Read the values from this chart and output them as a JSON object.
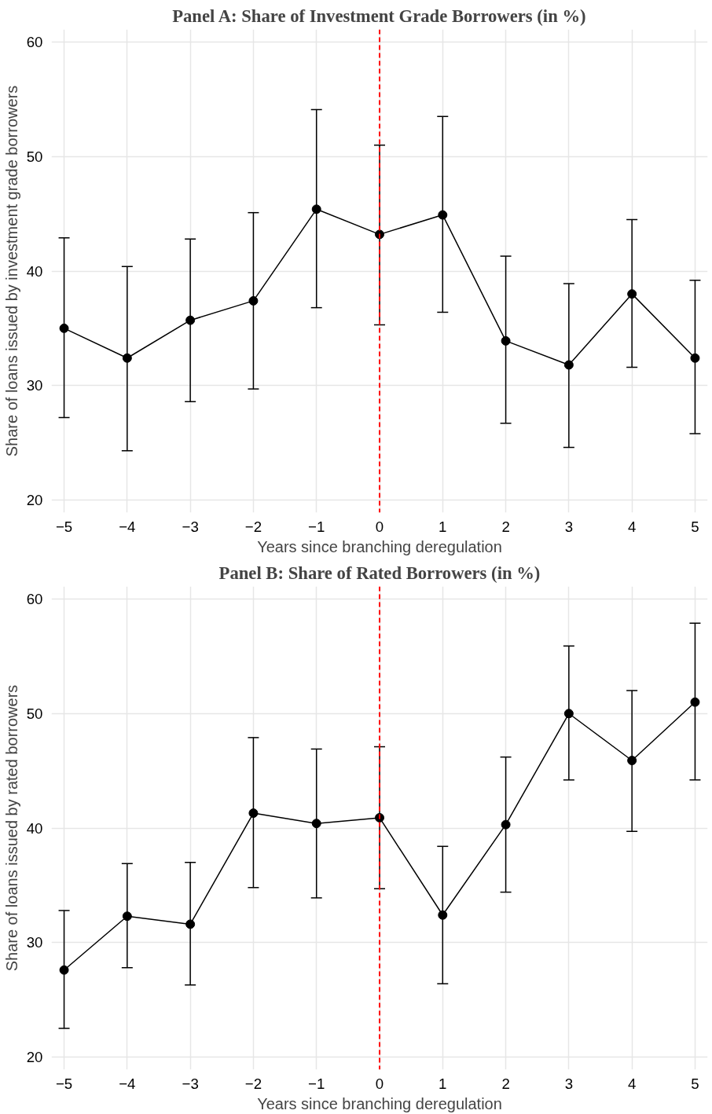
{
  "chart_data": [
    {
      "type": "line",
      "title": "Panel A: Share of Investment Grade Borrowers (in %)",
      "xlabel": "Years since branching deregulation",
      "ylabel": "Share of loans issued by investment grade borrowers",
      "x": [
        -5,
        -4,
        -3,
        -2,
        -1,
        0,
        1,
        2,
        3,
        4,
        5
      ],
      "series": [
        {
          "color": "#000000",
          "values": [
            35.0,
            32.4,
            35.7,
            37.4,
            45.4,
            43.2,
            44.9,
            33.9,
            31.8,
            38.0,
            32.4
          ],
          "errors": [
            [
              27.2,
              42.9
            ],
            [
              24.3,
              40.4
            ],
            [
              28.6,
              42.8
            ],
            [
              29.7,
              45.1
            ],
            [
              36.8,
              54.1
            ],
            [
              35.3,
              51.0
            ],
            [
              36.4,
              53.5
            ],
            [
              26.7,
              41.3
            ],
            [
              24.6,
              38.9
            ],
            [
              31.6,
              44.5
            ],
            [
              25.8,
              39.2
            ]
          ]
        }
      ],
      "xlim": [
        -5.2,
        5.2
      ],
      "ylim": [
        18.9,
        61.1
      ],
      "xticks": [
        {
          "value": -5,
          "label": "−5"
        },
        {
          "value": -4,
          "label": "−4"
        },
        {
          "value": -3,
          "label": "−3"
        },
        {
          "value": -2,
          "label": "−2"
        },
        {
          "value": -1,
          "label": "−1"
        },
        0,
        1,
        2,
        3,
        4,
        5
      ],
      "yticks": [
        20,
        30,
        40,
        50,
        60
      ],
      "ref_lines": [
        {
          "axis": "x",
          "value": 0,
          "color": "#ff0000",
          "line_style": "dashed"
        }
      ],
      "grid": true,
      "marker": "circle",
      "line_style": "solid"
    },
    {
      "type": "line",
      "title": "Panel B: Share of Rated Borrowers (in %)",
      "xlabel": "Years since branching deregulation",
      "ylabel": "Share of loans issued by rated borrowers",
      "x": [
        -5,
        -4,
        -3,
        -2,
        -1,
        0,
        1,
        2,
        3,
        4,
        5
      ],
      "series": [
        {
          "color": "#000000",
          "values": [
            27.6,
            32.3,
            31.6,
            41.3,
            40.4,
            40.9,
            32.4,
            40.3,
            50.0,
            45.9,
            51.0
          ],
          "errors": [
            [
              22.5,
              32.8
            ],
            [
              27.8,
              36.9
            ],
            [
              26.3,
              37.0
            ],
            [
              34.8,
              47.9
            ],
            [
              33.9,
              46.9
            ],
            [
              34.7,
              47.1
            ],
            [
              26.4,
              38.4
            ],
            [
              34.4,
              46.2
            ],
            [
              44.2,
              55.9
            ],
            [
              39.7,
              52.0
            ],
            [
              44.2,
              57.9
            ]
          ]
        }
      ],
      "xlim": [
        -5.2,
        5.2
      ],
      "ylim": [
        18.9,
        61.1
      ],
      "xticks": [
        {
          "value": -5,
          "label": "−5"
        },
        {
          "value": -4,
          "label": "−4"
        },
        {
          "value": -3,
          "label": "−3"
        },
        {
          "value": -2,
          "label": "−2"
        },
        {
          "value": -1,
          "label": "−1"
        },
        0,
        1,
        2,
        3,
        4,
        5
      ],
      "yticks": [
        20,
        30,
        40,
        50,
        60
      ],
      "ref_lines": [
        {
          "axis": "x",
          "value": 0,
          "color": "#ff0000",
          "line_style": "dashed"
        }
      ],
      "grid": true,
      "marker": "circle",
      "line_style": "solid"
    }
  ]
}
